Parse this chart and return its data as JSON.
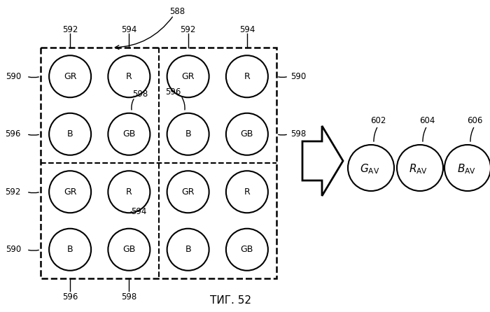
{
  "bg_color": "#ffffff",
  "fig_label": "ΤИГ. 52",
  "bayer_pattern": [
    [
      "GR",
      "R",
      "GR",
      "R"
    ],
    [
      "B",
      "GB",
      "B",
      "GB"
    ],
    [
      "GR",
      "R",
      "GR",
      "R"
    ],
    [
      "B",
      "GB",
      "B",
      "GB"
    ]
  ],
  "output_circles": [
    {
      "main": "G",
      "sub": "AV",
      "num": "602"
    },
    {
      "main": "R",
      "sub": "AV",
      "num": "604"
    },
    {
      "main": "B",
      "sub": "AV",
      "num": "606"
    }
  ]
}
